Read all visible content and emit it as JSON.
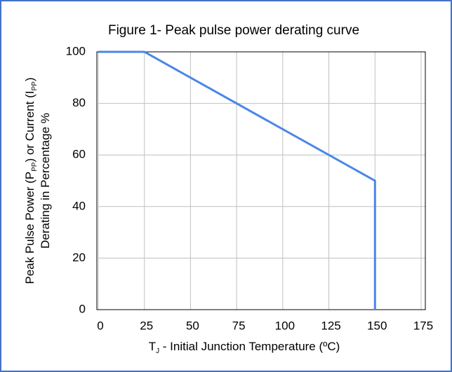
{
  "chart_data": {
    "type": "line",
    "title": "Figure 1- Peak pulse power derating curve",
    "x_label": [
      "T",
      "J",
      " - Initial Junction Temperature (ºC)"
    ],
    "y_label": [
      [
        "Peak Pulse Power (P",
        "PP",
        ") or Current (I",
        "PP",
        ")"
      ],
      [
        "Derating in Percentage %"
      ]
    ],
    "x": [
      0,
      25,
      150,
      150
    ],
    "series": [
      {
        "color": "#4a86e8",
        "values": [
          100,
          100,
          50,
          0
        ]
      }
    ],
    "xlim": [
      0,
      175
    ],
    "xticks": [
      0,
      25,
      50,
      75,
      100,
      125,
      150,
      175
    ],
    "ylim": [
      0,
      100
    ],
    "yticks": [
      0,
      20,
      40,
      60,
      80,
      100
    ],
    "grid": true
  }
}
